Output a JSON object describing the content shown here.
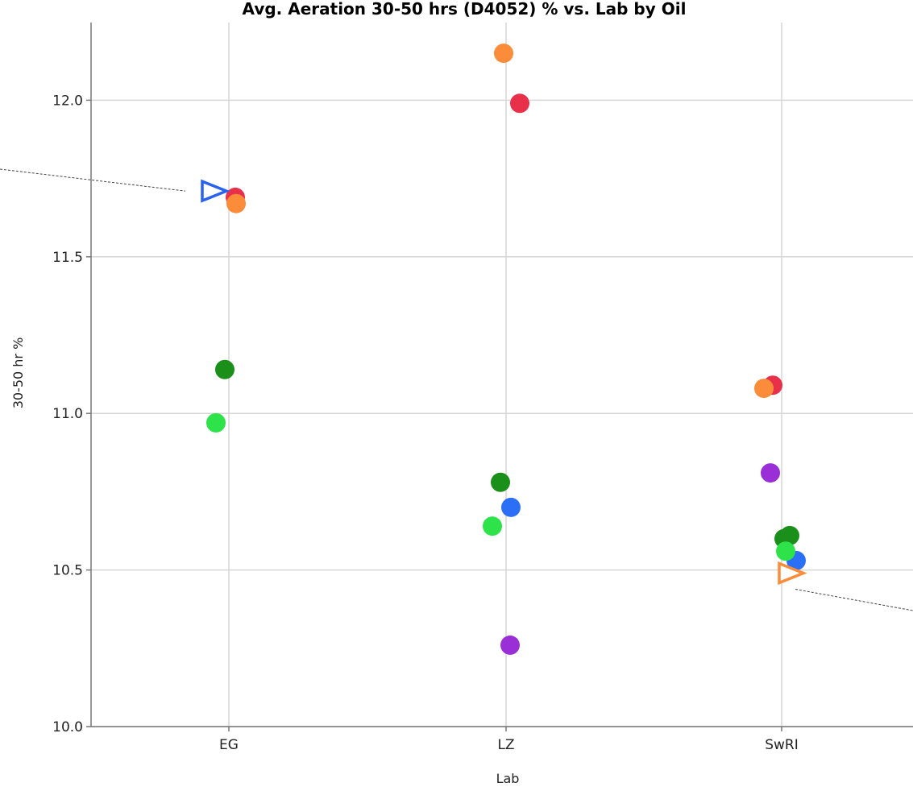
{
  "chart_data": {
    "type": "scatter",
    "title": "Avg. Aeration 30-50 hrs (D4052) % vs. Lab by Oil",
    "xlabel": "Lab",
    "ylabel": "30-50 hr %",
    "categories": [
      "EG",
      "LZ",
      "SwRI"
    ],
    "ylim": [
      10.0,
      12.25
    ],
    "y_ticks": [
      "10.0",
      "10.5",
      "11.0",
      "11.5",
      "12.0"
    ],
    "grid": true,
    "legend": "none",
    "points": [
      {
        "category": "EG",
        "y": 11.69,
        "color": "#e8304a",
        "marker": "circle"
      },
      {
        "category": "EG",
        "y": 11.67,
        "color": "#fb8c3a",
        "marker": "circle"
      },
      {
        "category": "EG",
        "y": 11.14,
        "color": "#1a8f1a",
        "marker": "circle"
      },
      {
        "category": "EG",
        "y": 10.97,
        "color": "#2ee34a",
        "marker": "circle"
      },
      {
        "category": "EG",
        "y": 11.71,
        "color": "#2a62f0",
        "marker": "triangle-right"
      },
      {
        "category": "LZ",
        "y": 12.15,
        "color": "#fb8c3a",
        "marker": "circle"
      },
      {
        "category": "LZ",
        "y": 11.99,
        "color": "#e8304a",
        "marker": "circle"
      },
      {
        "category": "LZ",
        "y": 10.78,
        "color": "#1a8f1a",
        "marker": "circle"
      },
      {
        "category": "LZ",
        "y": 10.7,
        "color": "#2a6ff5",
        "marker": "circle"
      },
      {
        "category": "LZ",
        "y": 10.64,
        "color": "#2ee34a",
        "marker": "circle"
      },
      {
        "category": "LZ",
        "y": 10.26,
        "color": "#9a2fd8",
        "marker": "circle"
      },
      {
        "category": "SwRI",
        "y": 11.09,
        "color": "#e8304a",
        "marker": "circle"
      },
      {
        "category": "SwRI",
        "y": 11.08,
        "color": "#fb8c3a",
        "marker": "circle"
      },
      {
        "category": "SwRI",
        "y": 10.81,
        "color": "#9a2fd8",
        "marker": "circle"
      },
      {
        "category": "SwRI",
        "y": 10.61,
        "color": "#1a8f1a",
        "marker": "circle"
      },
      {
        "category": "SwRI",
        "y": 10.6,
        "color": "#1a8f1a",
        "marker": "circle"
      },
      {
        "category": "SwRI",
        "y": 10.53,
        "color": "#2a6ff5",
        "marker": "circle"
      },
      {
        "category": "SwRI",
        "y": 10.56,
        "color": "#2ee34a",
        "marker": "circle"
      },
      {
        "category": "SwRI",
        "y": 10.49,
        "color": "#fb8c3a",
        "marker": "triangle-right"
      }
    ]
  }
}
